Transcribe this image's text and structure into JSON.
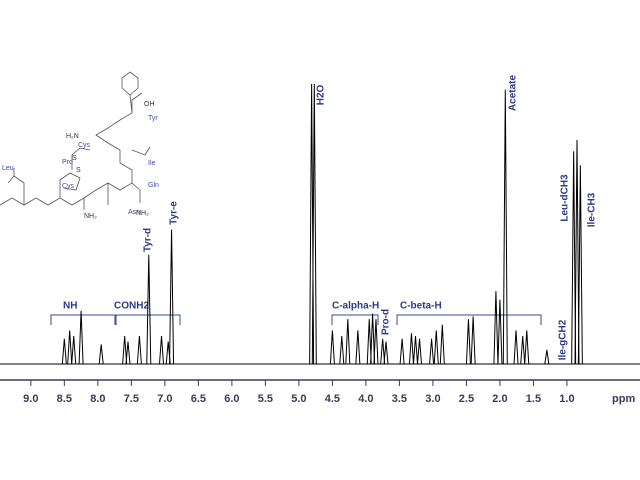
{
  "chart_data": {
    "type": "spectrum",
    "color": "#000000",
    "xlabel": "ppm",
    "xlim": [
      9.46,
      -0.09
    ],
    "xticks": [
      {
        "value": 9,
        "label": "9.0"
      },
      8.5,
      {
        "value": 8,
        "label": "8.0"
      },
      7.5,
      {
        "value": 7,
        "label": "7.0"
      },
      6.5,
      {
        "value": 6,
        "label": "6.0"
      },
      5.5,
      {
        "value": 5,
        "label": "5.0"
      },
      4.5,
      {
        "value": 4,
        "label": "4.0"
      },
      3.5,
      {
        "value": 3,
        "label": "3.0"
      },
      2.5,
      {
        "value": 2,
        "label": "2.0"
      },
      1.5,
      {
        "value": 1,
        "label": "1.0"
      }
    ],
    "ylim": [
      0,
      100
    ],
    "x": [
      8.5,
      8.42,
      8.36,
      8.25,
      7.95,
      7.6,
      7.55,
      7.38,
      7.24,
      7.05,
      6.95,
      6.9,
      4.81,
      4.77,
      4.5,
      4.36,
      4.27,
      4.12,
      3.95,
      3.9,
      3.85,
      3.75,
      3.7,
      3.46,
      3.32,
      3.26,
      3.2,
      3.02,
      2.95,
      2.86,
      2.47,
      2.4,
      2.06,
      2.0,
      1.92,
      1.76,
      1.66,
      1.6,
      1.3,
      0.9,
      0.85,
      0.8
    ],
    "values": [
      9,
      12,
      10,
      19,
      7,
      10,
      8,
      10,
      39,
      10,
      8,
      48,
      100,
      100,
      12,
      10,
      16,
      12,
      16,
      18,
      16,
      9,
      8,
      9,
      11,
      10,
      9,
      9,
      12,
      14,
      16,
      17,
      26,
      23,
      98,
      12,
      10,
      12,
      5,
      76,
      80,
      71
    ],
    "peak_labels": [
      "H2O",
      "Acetate",
      "Leu-dCH3",
      "Ile-CH3",
      "Tyr-d",
      "Tyr-e",
      "Pro-d",
      "Ile-gCH2"
    ],
    "group_labels": [
      "NH",
      "CONH2",
      "C-alpha-H",
      "C-beta-H"
    ],
    "structure_residues": [
      "Leu",
      "Pro",
      "Cys",
      "Cys",
      "Tyr",
      "Ile",
      "Gln",
      "Asn"
    ],
    "structure_atoms": [
      "H₂N",
      "OH",
      "NH₂",
      "NH₂",
      "S",
      "S"
    ]
  }
}
